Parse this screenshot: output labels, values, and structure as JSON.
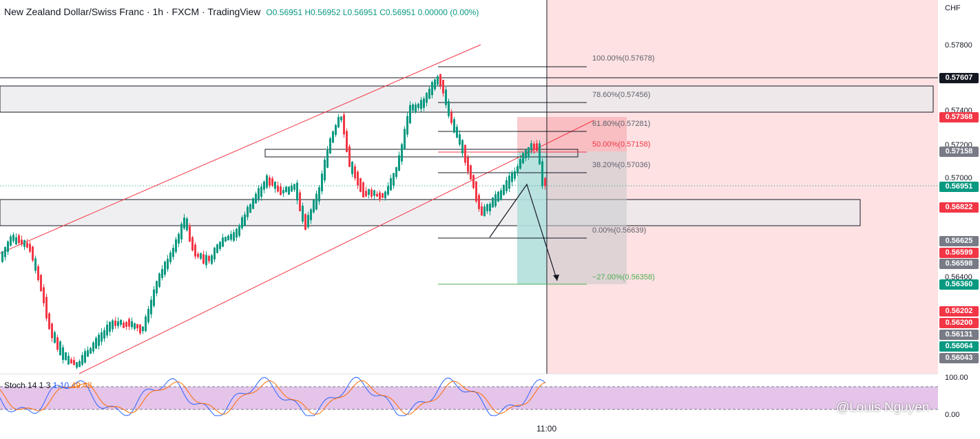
{
  "header": {
    "title": "New Zealand Dollar/Swiss Franc · 1h · FXCM · TradingView",
    "ohlc": "O0.56951 H0.56952 L0.56951 C0.56951 0.00000 (0.00%)"
  },
  "axis": {
    "currency": "CHF",
    "ticks": [
      "0.57800",
      "0.57400",
      "0.57200",
      "0.57000",
      "0.56400"
    ],
    "price_labels": [
      {
        "text": "0.57607",
        "color": "#131722"
      },
      {
        "text": "0.57368",
        "color": "#f23645"
      },
      {
        "text": "0.57158",
        "color": "#787b86"
      },
      {
        "text": "0.56951",
        "color": "#089981"
      },
      {
        "text": "0.56822",
        "color": "#f23645"
      },
      {
        "text": "0.56625",
        "color": "#787b86"
      },
      {
        "text": "0.56599",
        "color": "#f23645"
      },
      {
        "text": "0.56598",
        "color": "#787b86"
      },
      {
        "text": "0.56360",
        "color": "#089981"
      },
      {
        "text": "0.56202",
        "color": "#f23645"
      },
      {
        "text": "0.56200",
        "color": "#f23645"
      },
      {
        "text": "0.56131",
        "color": "#787b86"
      },
      {
        "text": "0.56064",
        "color": "#089981"
      },
      {
        "text": "0.56043",
        "color": "#787b86"
      }
    ],
    "stoch_ticks": [
      "100.00",
      "0.00"
    ]
  },
  "fib_levels": [
    {
      "text": "100.00%(0.57678)",
      "color": "#5d606b"
    },
    {
      "text": "78.60%(0.57456)",
      "color": "#5d606b"
    },
    {
      "text": "61.80%(0.57281)",
      "color": "#5d606b"
    },
    {
      "text": "50.00%(0.57158)",
      "color": "#f23645"
    },
    {
      "text": "38.20%(0.57036)",
      "color": "#5d606b"
    },
    {
      "text": "0.00%(0.56639)",
      "color": "#5d606b"
    },
    {
      "text": "−27.00%(0.56358)",
      "color": "#4caf50"
    }
  ],
  "stoch": {
    "name": "Stoch 14 1 3",
    "k": "1.10",
    "d": "49.48",
    "k_color": "#2962ff",
    "d_color": "#ff6d00"
  },
  "time_label": "11:00",
  "watermark": "@Louis Nguyen",
  "colors": {
    "up": "#089981",
    "down": "#f23645",
    "zone_red": "#fde1e3",
    "zone_green": "#b2dfdb"
  }
}
